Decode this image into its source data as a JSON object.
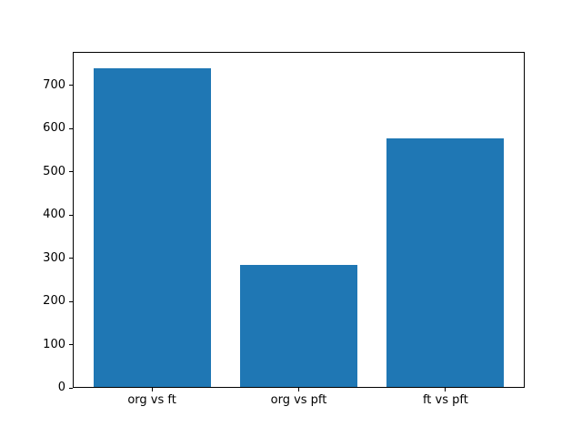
{
  "chart_data": {
    "type": "bar",
    "title": "",
    "xlabel": "",
    "ylabel": "",
    "categories": [
      "org vs ft",
      "org vs pft",
      "ft vs pft"
    ],
    "values": [
      740,
      284,
      578
    ],
    "yticks": [
      0,
      100,
      200,
      300,
      400,
      500,
      600,
      700
    ],
    "ylim": [
      0,
      777
    ],
    "xlim": [
      -0.54,
      2.54
    ],
    "bar_width": 0.8,
    "bar_color": "#1f77b4",
    "spine_color": "#000000",
    "text_color": "#000000",
    "background": "#ffffff",
    "grid": "off",
    "legend": "none"
  }
}
